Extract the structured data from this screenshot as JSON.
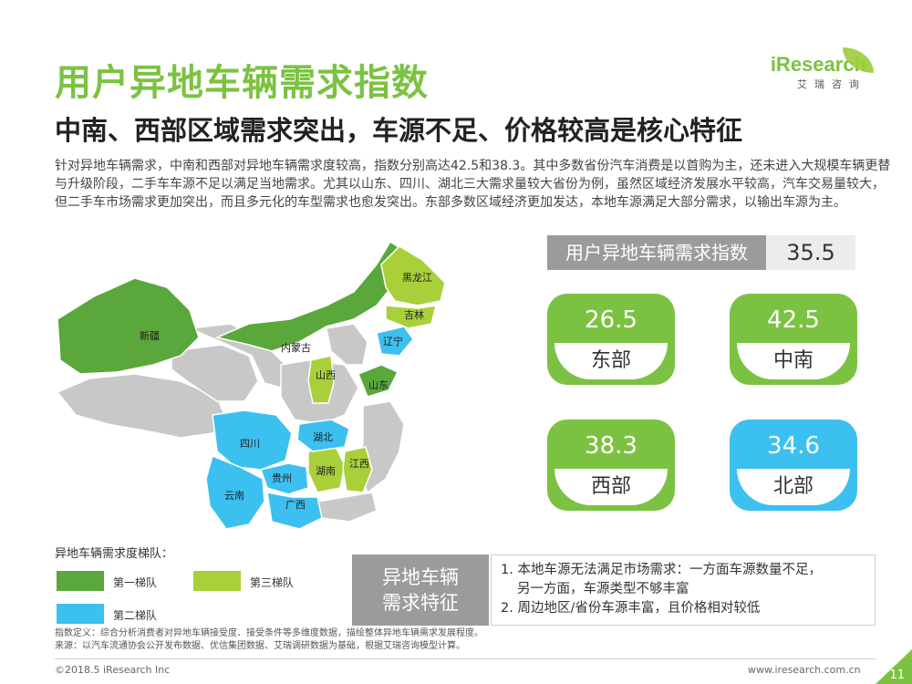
{
  "header": {
    "title": "用户异地车辆需求指数",
    "subtitle": "中南、西部区域需求突出，车源不足、价格较高是核心特征",
    "intro": "针对异地车辆需求，中南和西部对异地车辆需求度较高，指数分别高达42.5和38.3。其中多数省份汽车消费是以首购为主，还未进入大规模车辆更替与升级阶段，二手车车源不足以满足当地需求。尤其以山东、四川、湖北三大需求量较大省份为例，虽然区域经济发展水平较高，汽车交易量较大，但二手车市场需求更加突出，而且多元化的车型需求也愈发突出。东部多数区域经济更加发达，本地车源满足大部分需求，以输出车源为主。"
  },
  "logo": {
    "brand": "iResearch",
    "cn": "艾瑞咨询"
  },
  "index": {
    "label": "用户异地车辆需求指数",
    "value": "35.5"
  },
  "regions": [
    {
      "value": "26.5",
      "name": "东部",
      "color": "#7cc242"
    },
    {
      "value": "42.5",
      "name": "中南",
      "color": "#7cc242"
    },
    {
      "value": "38.3",
      "name": "西部",
      "color": "#7cc242"
    },
    {
      "value": "34.6",
      "name": "北部",
      "color": "#3cc0f0"
    }
  ],
  "map": {
    "labels": {
      "xinjiang": "新疆",
      "neimenggu": "内蒙古",
      "heilongjiang": "黑龙江",
      "jilin": "吉林",
      "liaoning": "辽宁",
      "shanxi": "山西",
      "shandong": "山东",
      "sichuan": "四川",
      "hubei": "湖北",
      "jiangxi": "江西",
      "hunan": "湖南",
      "guizhou": "贵州",
      "yunnan": "云南",
      "guangxi": "广西"
    },
    "colors": {
      "tier1": "#5aa73c",
      "tier2": "#3cc0f0",
      "tier3": "#a9cf3a",
      "other": "#c8c8c8"
    }
  },
  "legend": {
    "title": "异地车辆需求度梯队：",
    "tier1": "第一梯队",
    "tier2": "第二梯队",
    "tier3": "第三梯队"
  },
  "features": {
    "title_line1": "异地车辆",
    "title_line2": "需求特征",
    "item1": "1. 本地车源无法满足市场需求：一方面车源数量不足，",
    "item1_cont": "另一方面，车源类型不够丰富",
    "item2": "2. 周边地区/省份车源丰富，且价格相对较低"
  },
  "notes": {
    "definition": "指数定义：综合分析消费者对异地车辆接受度、接受条件等多维度数据，描绘整体异地车辆需求发展程度。",
    "source": "来源：以汽车流通协会公开发布数据、优信集团数据、艾瑞调研数据为基础，根据艾瑞咨询模型计算。"
  },
  "footer": {
    "copyright": "©2018.5 iResearch Inc",
    "site": "www.iresearch.com.cn",
    "page": "11"
  }
}
